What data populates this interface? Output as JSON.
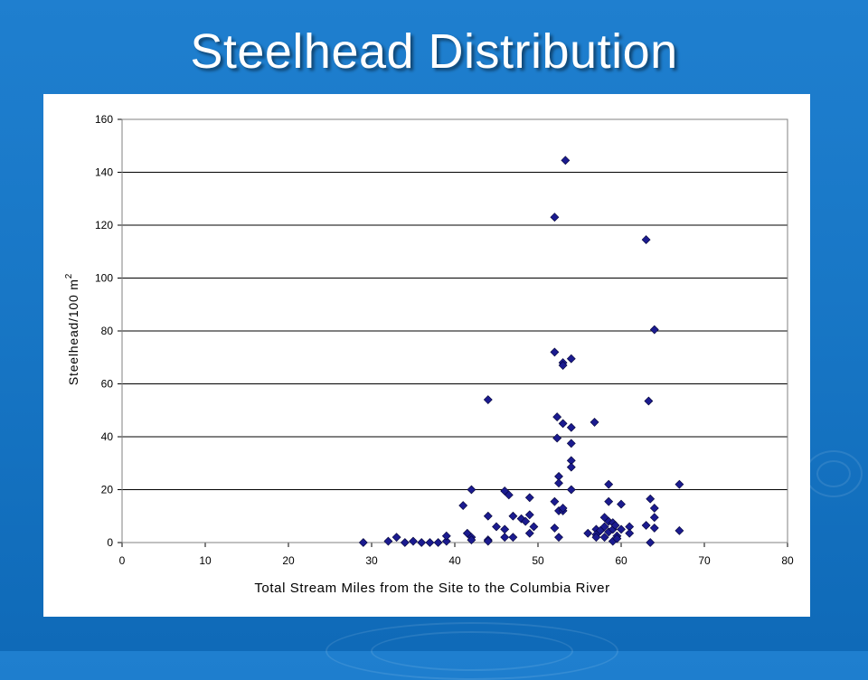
{
  "slide": {
    "title": "Steelhead Distribution"
  },
  "chart_data": {
    "type": "scatter",
    "title": "",
    "xlabel": "Total Stream Miles from the Site to the Columbia River",
    "ylabel": "Steelhead/100 m",
    "ylabel_superscript": "2",
    "xlim": [
      0,
      80
    ],
    "ylim": [
      0,
      160
    ],
    "xticks": [
      0,
      10,
      20,
      30,
      40,
      50,
      60,
      70,
      80
    ],
    "yticks": [
      0,
      20,
      40,
      60,
      80,
      100,
      120,
      140,
      160
    ],
    "grid": "horizontal",
    "marker": "diamond",
    "marker_color": "#1b1b8f",
    "points": [
      [
        29,
        0
      ],
      [
        32,
        0.5
      ],
      [
        33,
        2
      ],
      [
        34,
        0
      ],
      [
        35,
        0.5
      ],
      [
        36,
        0
      ],
      [
        37,
        0
      ],
      [
        38,
        0
      ],
      [
        39,
        0.5
      ],
      [
        39,
        2.5
      ],
      [
        41,
        14
      ],
      [
        41.5,
        3.5
      ],
      [
        42,
        20
      ],
      [
        42,
        2
      ],
      [
        42,
        1
      ],
      [
        44,
        54
      ],
      [
        44,
        10
      ],
      [
        44,
        1
      ],
      [
        44,
        0.5
      ],
      [
        45,
        6
      ],
      [
        46,
        19.5
      ],
      [
        46,
        5
      ],
      [
        46,
        2
      ],
      [
        46.5,
        18
      ],
      [
        47,
        10
      ],
      [
        47,
        2
      ],
      [
        48,
        9
      ],
      [
        48.5,
        8
      ],
      [
        49,
        17
      ],
      [
        49,
        10.5
      ],
      [
        49,
        3.5
      ],
      [
        49.5,
        6
      ],
      [
        52,
        123
      ],
      [
        52,
        72
      ],
      [
        52,
        15.5
      ],
      [
        52,
        5.5
      ],
      [
        52.3,
        47.5
      ],
      [
        52.3,
        39.5
      ],
      [
        52.5,
        25
      ],
      [
        52.5,
        22.5
      ],
      [
        52.5,
        12
      ],
      [
        52.5,
        2
      ],
      [
        53,
        45
      ],
      [
        53,
        68
      ],
      [
        53,
        67
      ],
      [
        53,
        12
      ],
      [
        53,
        13
      ],
      [
        53.3,
        144.5
      ],
      [
        54,
        69.5
      ],
      [
        54,
        43.5
      ],
      [
        54,
        37.5
      ],
      [
        54,
        31
      ],
      [
        54,
        28.5
      ],
      [
        54,
        20
      ],
      [
        56,
        3.5
      ],
      [
        56.8,
        45.5
      ],
      [
        57,
        5
      ],
      [
        57,
        3
      ],
      [
        57,
        2
      ],
      [
        57.5,
        4.5
      ],
      [
        58,
        9.5
      ],
      [
        58,
        6
      ],
      [
        58,
        2
      ],
      [
        58.5,
        22
      ],
      [
        58.5,
        15.5
      ],
      [
        58.5,
        8
      ],
      [
        58.5,
        4
      ],
      [
        59,
        7.5
      ],
      [
        59,
        5
      ],
      [
        59,
        0.5
      ],
      [
        59.3,
        6.5
      ],
      [
        59.5,
        2.5
      ],
      [
        59.5,
        1.5
      ],
      [
        60,
        14.5
      ],
      [
        60,
        5
      ],
      [
        61,
        6
      ],
      [
        61,
        3.5
      ],
      [
        63,
        114.5
      ],
      [
        63,
        6.5
      ],
      [
        63.3,
        53.5
      ],
      [
        63.5,
        16.5
      ],
      [
        63.5,
        0
      ],
      [
        64,
        80.5
      ],
      [
        64,
        13
      ],
      [
        64,
        9.5
      ],
      [
        64,
        5.5
      ],
      [
        67,
        22
      ],
      [
        67,
        4.5
      ]
    ]
  }
}
